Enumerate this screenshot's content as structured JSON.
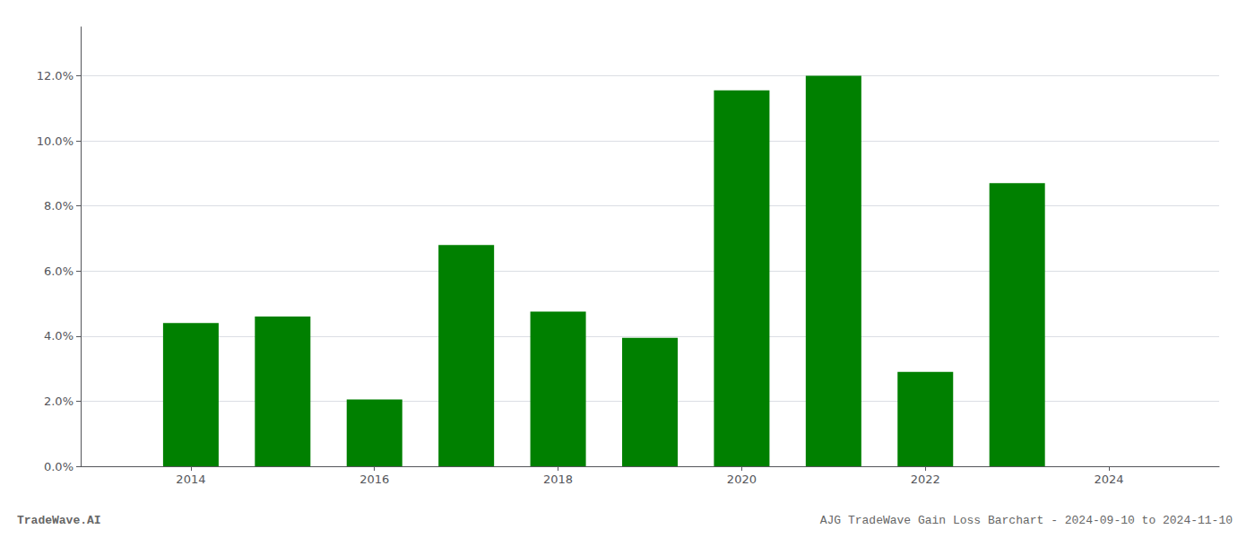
{
  "chart_data": {
    "type": "bar",
    "title": "AJG TradeWave Gain Loss Barchart - 2024-09-10 to 2024-11-10",
    "annotations": [
      "TradeWave.AI"
    ],
    "x": [
      2014,
      2015,
      2016,
      2017,
      2018,
      2019,
      2020,
      2021,
      2022,
      2023
    ],
    "values": [
      0.044,
      0.046,
      0.0205,
      0.068,
      0.0475,
      0.0395,
      0.1155,
      0.12,
      0.029,
      0.087
    ],
    "color": "#008000",
    "xlim": [
      2012.8,
      2025.2
    ],
    "xticks": [
      2014,
      2016,
      2018,
      2020,
      2022,
      2024
    ],
    "ylim": [
      0,
      0.135
    ],
    "yticks": [
      {
        "value": 0.0,
        "label": "0.0%"
      },
      {
        "value": 0.02,
        "label": "2.0%"
      },
      {
        "value": 0.04,
        "label": "4.0%"
      },
      {
        "value": 0.06,
        "label": "6.0%"
      },
      {
        "value": 0.08,
        "label": "8.0%"
      },
      {
        "value": 0.1,
        "label": "10.0%"
      },
      {
        "value": 0.12,
        "label": "12.0%"
      }
    ],
    "grid": true
  }
}
